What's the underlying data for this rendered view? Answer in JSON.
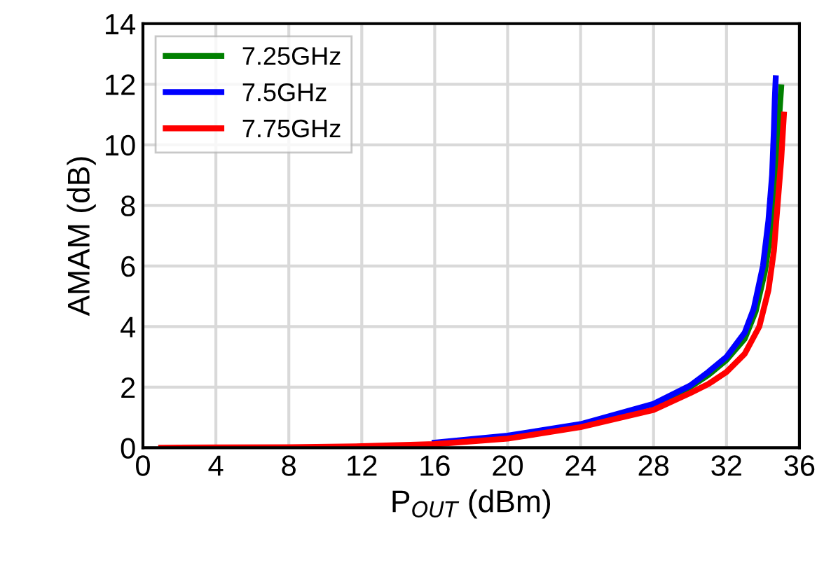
{
  "chart_data": {
    "type": "line",
    "xlabel": "P$_{OUT}$ (dBm)",
    "ylabel": "AMAM (dB)",
    "xlim": [
      0,
      36
    ],
    "ylim": [
      0,
      14
    ],
    "xticks": [
      0,
      4,
      8,
      12,
      16,
      20,
      24,
      28,
      32,
      36
    ],
    "yticks": [
      0,
      2,
      4,
      6,
      8,
      10,
      12,
      14
    ],
    "grid": true,
    "legend": "top left",
    "line_style": "solid",
    "marker": "none",
    "series": [
      {
        "name": "7.25GHz",
        "color": "#008000",
        "x": [
          28,
          30,
          31,
          32,
          33,
          33.6,
          34.1,
          34.4,
          34.6,
          34.8,
          34.9,
          35.0
        ],
        "values": [
          1.4,
          2.0,
          2.4,
          2.9,
          3.6,
          4.5,
          5.8,
          7.0,
          8.5,
          10.0,
          11.0,
          11.9
        ]
      },
      {
        "name": "7.5GHz",
        "color": "#0000ff",
        "x": [
          16,
          20,
          24,
          28,
          30,
          31,
          32,
          33,
          33.5,
          34.0,
          34.3,
          34.5,
          34.6,
          34.65,
          34.7
        ],
        "values": [
          0.17,
          0.4,
          0.78,
          1.45,
          2.05,
          2.5,
          3.0,
          3.8,
          4.6,
          6.0,
          7.5,
          9.0,
          10.5,
          11.5,
          12.2
        ]
      },
      {
        "name": "7.75GHz",
        "color": "#ff0000",
        "x": [
          1,
          4,
          8,
          12,
          16,
          20,
          24,
          28,
          30,
          31,
          32,
          33,
          33.8,
          34.3,
          34.6,
          34.8,
          35.0,
          35.1,
          35.15
        ],
        "values": [
          0,
          0.01,
          0.02,
          0.05,
          0.12,
          0.3,
          0.68,
          1.25,
          1.8,
          2.1,
          2.5,
          3.1,
          4.0,
          5.2,
          6.5,
          8.0,
          9.5,
          10.5,
          11.0
        ]
      }
    ]
  }
}
